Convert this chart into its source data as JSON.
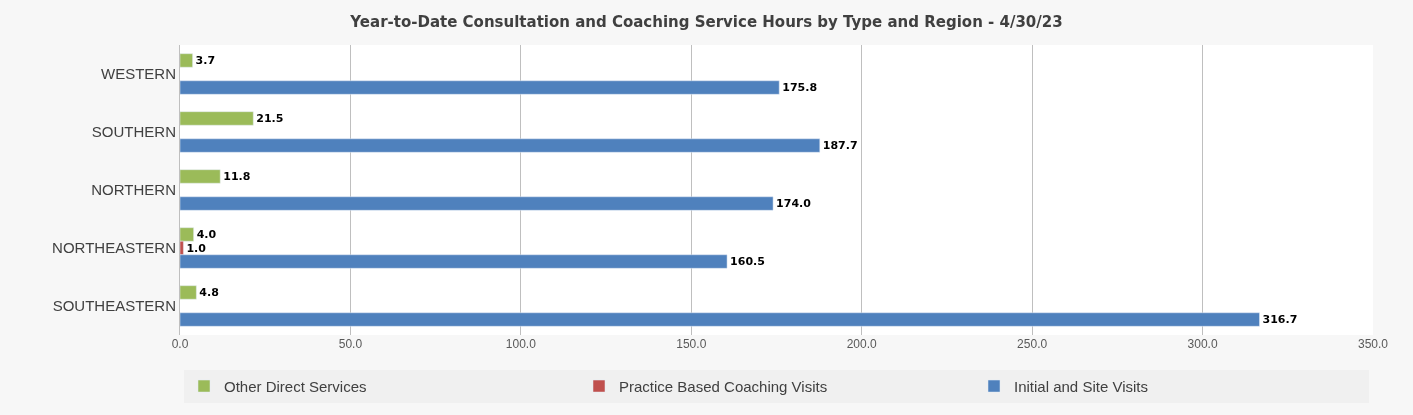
{
  "chart_data": {
    "type": "bar",
    "orientation": "horizontal",
    "title": "Year-to-Date Consultation and Coaching Service Hours by Type and Region - 4/30/23",
    "categories": [
      "WESTERN",
      "SOUTHERN",
      "NORTHERN",
      "NORTHEASTERN",
      "SOUTHEASTERN"
    ],
    "series": [
      {
        "name": "Other Direct Services",
        "color": "#9bbb59",
        "values": [
          3.7,
          21.5,
          11.8,
          4.0,
          4.8
        ],
        "value_labels": [
          "3.7",
          "21.5",
          "11.8",
          "4.0",
          "4.8"
        ]
      },
      {
        "name": "Practice Based Coaching Visits",
        "color": "#c0504d",
        "values": [
          null,
          null,
          null,
          1.0,
          null
        ],
        "value_labels": [
          null,
          null,
          null,
          "1.0",
          null
        ]
      },
      {
        "name": "Initial and Site Visits",
        "color": "#4f81bd",
        "values": [
          175.8,
          187.7,
          174.0,
          160.5,
          316.7
        ],
        "value_labels": [
          "175.8",
          "187.7",
          "174.0",
          "160.5",
          "316.7"
        ]
      }
    ],
    "xlim": [
      0,
      350
    ],
    "xticks": [
      {
        "value": 0,
        "label": "0.0"
      },
      {
        "value": 50,
        "label": "50.0"
      },
      {
        "value": 100,
        "label": "100.0"
      },
      {
        "value": 150,
        "label": "150.0"
      },
      {
        "value": 200,
        "label": "200.0"
      },
      {
        "value": 250,
        "label": "250.0"
      },
      {
        "value": 300,
        "label": "300.0"
      },
      {
        "value": 350,
        "label": "350.0"
      }
    ],
    "grid": "x",
    "legend": "bottom"
  }
}
